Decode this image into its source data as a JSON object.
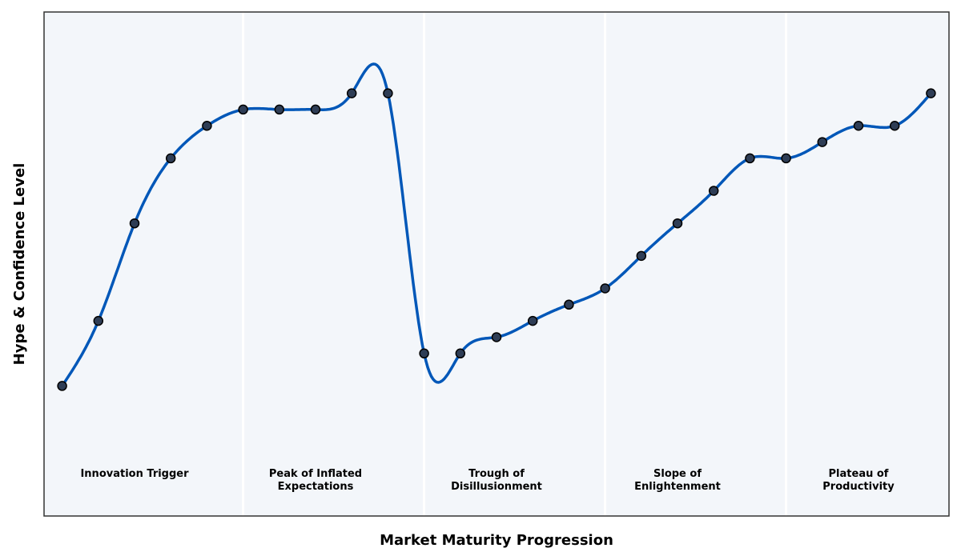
{
  "chart_data": {
    "type": "line",
    "title": "",
    "xlabel": "Market Maturity Progression",
    "ylabel": "Hype & Confidence Level",
    "x": [
      0,
      1,
      2,
      3,
      4,
      5,
      6,
      7,
      8,
      9,
      10,
      11,
      12,
      13,
      14,
      15,
      16,
      17,
      18,
      19,
      20,
      21,
      22,
      23,
      24
    ],
    "values": [
      20,
      40,
      70,
      90,
      100,
      105,
      105,
      105,
      110,
      110,
      30,
      30,
      35,
      40,
      45,
      50,
      60,
      70,
      80,
      90,
      90,
      95,
      100,
      100,
      110
    ],
    "xlim": [
      -0.5,
      24.5
    ],
    "ylim": [
      -20,
      135
    ],
    "grid": false,
    "x_ticks_visible": false,
    "y_ticks_visible": false,
    "smoothed": true,
    "phase_boundaries": [
      5,
      10,
      15,
      20
    ],
    "phases": [
      {
        "label_lines": [
          "Innovation Trigger"
        ],
        "center": 2
      },
      {
        "label_lines": [
          "Peak of Inflated",
          "Expectations"
        ],
        "center": 7
      },
      {
        "label_lines": [
          "Trough of",
          "Disillusionment"
        ],
        "center": 12
      },
      {
        "label_lines": [
          "Slope of",
          "Enlightenment"
        ],
        "center": 17
      },
      {
        "label_lines": [
          "Plateau of",
          "Productivity"
        ],
        "center": 22
      }
    ],
    "colors": {
      "line": "#0057b8",
      "marker_fill": "#2e3d55",
      "marker_edge": "#000000",
      "plot_background": "#f3f6fa",
      "separator": "#ffffff",
      "frame": "#333333"
    }
  }
}
